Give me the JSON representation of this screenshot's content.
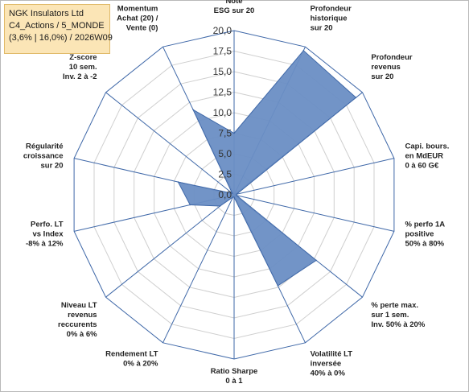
{
  "title_box": {
    "line1": "NGK Insulators Ltd",
    "line2": "C4_Actions / 5_MONDE",
    "line3": "(3,6% | 16,0%) / 2026W09"
  },
  "chart_data": {
    "type": "radar",
    "rmin": 0,
    "rmax": 20,
    "tick_values": [
      0,
      2.5,
      5,
      7.5,
      10,
      12.5,
      15,
      17.5,
      20
    ],
    "tick_labels": [
      "0,0",
      "2,5",
      "5,0",
      "7,5",
      "10,0",
      "12,5",
      "15,0",
      "17,5",
      "20,0"
    ],
    "grid": true,
    "fill_color": "#6a8ec4",
    "stroke_color": "#3f68a8",
    "axes": [
      {
        "label": [
          "Note",
          "ESG sur 20"
        ],
        "value": 7.5
      },
      {
        "label": [
          "Profondeur",
          "historique",
          "sur 20"
        ],
        "value": 19.5
      },
      {
        "label": [
          "Profondeur",
          "revenus",
          "sur 20"
        ],
        "value": 19.0
      },
      {
        "label": [
          "Capi. bours.",
          "en MdEUR",
          "0 à 60 G€"
        ],
        "value": 0.3
      },
      {
        "label": [
          "% perfo 1A",
          "positive",
          "50% à 80%"
        ],
        "value": 0.3
      },
      {
        "label": [
          "% perte max.",
          "sur 1 sem.",
          "Inv. 50% à 20%"
        ],
        "value": 12.8
      },
      {
        "label": [
          "Volatilité LT",
          "inversée",
          "40% à 0%"
        ],
        "value": 12.3
      },
      {
        "label": [
          "Ratio Sharpe",
          "0 à 1"
        ],
        "value": 0.3
      },
      {
        "label": [
          "Rendement LT",
          "0% à 20%"
        ],
        "value": 0.3
      },
      {
        "label": [
          "Niveau LT",
          "revenus",
          "reccurents",
          "0% à 6%"
        ],
        "value": 2.2
      },
      {
        "label": [
          "Perfo. LT",
          "vs Index",
          "-8% à 12%"
        ],
        "value": 5.5
      },
      {
        "label": [
          "Régularité",
          "croissance",
          "sur 20"
        ],
        "value": 7.0
      },
      {
        "label": [
          "Z-score",
          "10 sem.",
          "Inv. 2 à -2"
        ],
        "value": 0.3
      },
      {
        "label": [
          "Momentum",
          "Achat (20) /",
          "Vente (0)"
        ],
        "value": 11.5
      }
    ]
  }
}
